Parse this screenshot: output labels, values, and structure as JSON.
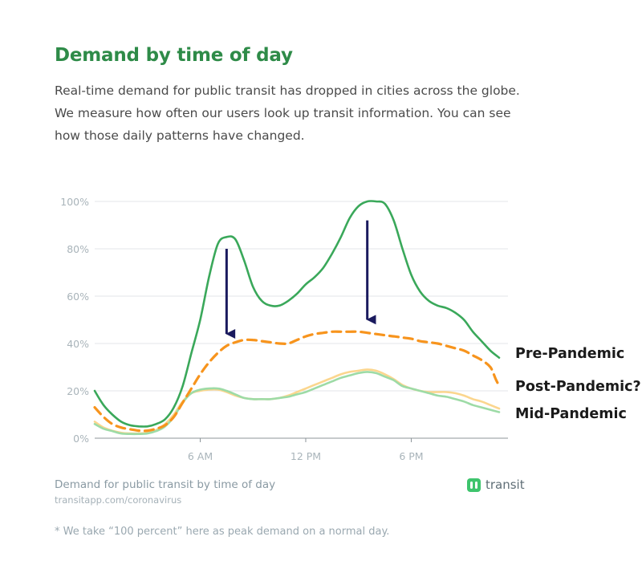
{
  "page": {
    "title": "Demand by time of day",
    "description_lines": [
      "Real-time demand for public transit has dropped in cities across the globe.",
      "We measure how often our users look up transit information. You can see",
      "how those daily patterns have changed."
    ],
    "caption": "Demand for public transit by time of day",
    "source": "transitapp.com/coronavirus",
    "brand": "transit",
    "brand_icon": "transit-logo-icon",
    "footnote": "* We take “100 percent” here as peak demand on a normal day."
  },
  "chart_data": {
    "type": "line",
    "x_unit": "hour of day",
    "xlim": [
      0,
      23.5
    ],
    "ylim": [
      0,
      100
    ],
    "y_ticks": [
      0,
      20,
      40,
      60,
      80,
      100
    ],
    "y_tick_labels": [
      "0%",
      "20%",
      "40%",
      "60%",
      "80%",
      "100%"
    ],
    "x_ticks": [
      6,
      12,
      18
    ],
    "x_tick_labels": [
      "6 AM",
      "12 PM",
      "6 PM"
    ],
    "grid": "horizontal",
    "legend": "direct labels at right end of lines",
    "series": [
      {
        "name": "Pre-Pandemic",
        "color": "#3aa85a",
        "style": "solid",
        "points": [
          [
            0,
            20
          ],
          [
            0.5,
            14
          ],
          [
            1,
            10
          ],
          [
            1.5,
            7
          ],
          [
            2,
            5.5
          ],
          [
            2.5,
            5
          ],
          [
            3,
            5
          ],
          [
            3.5,
            6
          ],
          [
            4,
            8
          ],
          [
            4.5,
            13
          ],
          [
            5,
            22
          ],
          [
            5.5,
            36
          ],
          [
            6,
            50
          ],
          [
            6.5,
            68
          ],
          [
            7,
            82
          ],
          [
            7.5,
            85
          ],
          [
            8,
            84
          ],
          [
            8.5,
            75
          ],
          [
            9,
            64
          ],
          [
            9.5,
            58
          ],
          [
            10,
            56
          ],
          [
            10.5,
            56
          ],
          [
            11,
            58
          ],
          [
            11.5,
            61
          ],
          [
            12,
            65
          ],
          [
            12.5,
            68
          ],
          [
            13,
            72
          ],
          [
            13.5,
            78
          ],
          [
            14,
            85
          ],
          [
            14.5,
            93
          ],
          [
            15,
            98
          ],
          [
            15.5,
            100
          ],
          [
            16,
            100
          ],
          [
            16.5,
            99
          ],
          [
            17,
            92
          ],
          [
            17.5,
            80
          ],
          [
            18,
            69
          ],
          [
            18.5,
            62
          ],
          [
            19,
            58
          ],
          [
            19.5,
            56
          ],
          [
            20,
            55
          ],
          [
            20.5,
            53
          ],
          [
            21,
            50
          ],
          [
            21.5,
            45
          ],
          [
            22,
            41
          ],
          [
            22.5,
            37
          ],
          [
            23,
            34
          ]
        ]
      },
      {
        "name": "Post-Pandemic?",
        "color": "#f7941d",
        "style": "dashed",
        "points": [
          [
            0,
            13
          ],
          [
            0.5,
            9
          ],
          [
            1,
            6
          ],
          [
            1.5,
            4.5
          ],
          [
            2,
            3.8
          ],
          [
            2.5,
            3.2
          ],
          [
            3,
            3.2
          ],
          [
            3.5,
            4
          ],
          [
            4,
            5.5
          ],
          [
            4.5,
            9
          ],
          [
            5,
            15
          ],
          [
            5.5,
            21
          ],
          [
            6,
            27
          ],
          [
            6.5,
            32
          ],
          [
            7,
            36
          ],
          [
            7.5,
            39
          ],
          [
            8,
            40.5
          ],
          [
            8.5,
            41.5
          ],
          [
            9,
            41.5
          ],
          [
            9.5,
            41
          ],
          [
            10,
            40.5
          ],
          [
            10.5,
            40
          ],
          [
            11,
            40
          ],
          [
            11.5,
            41.5
          ],
          [
            12,
            43
          ],
          [
            12.5,
            44
          ],
          [
            13,
            44.5
          ],
          [
            13.5,
            45
          ],
          [
            14,
            45
          ],
          [
            14.5,
            45
          ],
          [
            15,
            45
          ],
          [
            15.5,
            44.5
          ],
          [
            16,
            44
          ],
          [
            16.5,
            43.5
          ],
          [
            17,
            43
          ],
          [
            17.5,
            42.5
          ],
          [
            18,
            42
          ],
          [
            18.5,
            41
          ],
          [
            19,
            40.5
          ],
          [
            19.5,
            40
          ],
          [
            20,
            39
          ],
          [
            20.5,
            38
          ],
          [
            21,
            37
          ],
          [
            21.5,
            35
          ],
          [
            22,
            33
          ],
          [
            22.5,
            30
          ],
          [
            22.8,
            25
          ],
          [
            23,
            22
          ]
        ]
      },
      {
        "name": "Mid-Pandemic",
        "color": "#9ddba6",
        "style": "solid",
        "points": [
          [
            0,
            6
          ],
          [
            0.5,
            4
          ],
          [
            1,
            3
          ],
          [
            1.5,
            2
          ],
          [
            2,
            1.8
          ],
          [
            2.5,
            1.8
          ],
          [
            3,
            2
          ],
          [
            3.5,
            3
          ],
          [
            4,
            5
          ],
          [
            4.5,
            9
          ],
          [
            5,
            15
          ],
          [
            5.5,
            19
          ],
          [
            6,
            20.5
          ],
          [
            6.5,
            21
          ],
          [
            7,
            21
          ],
          [
            7.5,
            20
          ],
          [
            8,
            18.5
          ],
          [
            8.5,
            17
          ],
          [
            9,
            16.5
          ],
          [
            9.5,
            16.5
          ],
          [
            10,
            16.5
          ],
          [
            10.5,
            17
          ],
          [
            11,
            17.5
          ],
          [
            11.5,
            18.5
          ],
          [
            12,
            19.5
          ],
          [
            12.5,
            21
          ],
          [
            13,
            22.5
          ],
          [
            13.5,
            24
          ],
          [
            14,
            25.5
          ],
          [
            14.5,
            26.5
          ],
          [
            15,
            27.5
          ],
          [
            15.5,
            28
          ],
          [
            16,
            27.5
          ],
          [
            16.5,
            26
          ],
          [
            17,
            24.5
          ],
          [
            17.5,
            22
          ],
          [
            18,
            21
          ],
          [
            18.5,
            20
          ],
          [
            19,
            19
          ],
          [
            19.5,
            18
          ],
          [
            20,
            17.5
          ],
          [
            20.5,
            16.5
          ],
          [
            21,
            15.5
          ],
          [
            21.5,
            14
          ],
          [
            22,
            13
          ],
          [
            22.5,
            12
          ],
          [
            23,
            11
          ]
        ]
      },
      {
        "name": "Mid-Pandemic",
        "color": "#fbd68e",
        "style": "solid",
        "points": [
          [
            0,
            7
          ],
          [
            0.5,
            4.5
          ],
          [
            1,
            3.2
          ],
          [
            1.5,
            2.3
          ],
          [
            2,
            2
          ],
          [
            2.5,
            2
          ],
          [
            3,
            2.3
          ],
          [
            3.5,
            3.5
          ],
          [
            4,
            6
          ],
          [
            4.5,
            10
          ],
          [
            5,
            15.5
          ],
          [
            5.5,
            19
          ],
          [
            6,
            20
          ],
          [
            6.5,
            20.5
          ],
          [
            7,
            20.5
          ],
          [
            7.5,
            19.5
          ],
          [
            8,
            18
          ],
          [
            8.5,
            17
          ],
          [
            9,
            16.5
          ],
          [
            9.5,
            16.5
          ],
          [
            10,
            16.5
          ],
          [
            10.5,
            17
          ],
          [
            11,
            18
          ],
          [
            11.5,
            19.5
          ],
          [
            12,
            21
          ],
          [
            12.5,
            22.5
          ],
          [
            13,
            24
          ],
          [
            13.5,
            25.5
          ],
          [
            14,
            27
          ],
          [
            14.5,
            28
          ],
          [
            15,
            28.5
          ],
          [
            15.5,
            29
          ],
          [
            16,
            28.5
          ],
          [
            16.5,
            27
          ],
          [
            17,
            25
          ],
          [
            17.5,
            22.5
          ],
          [
            18,
            21
          ],
          [
            18.5,
            20
          ],
          [
            19,
            19.5
          ],
          [
            19.5,
            19.5
          ],
          [
            20,
            19.5
          ],
          [
            20.5,
            19
          ],
          [
            21,
            18
          ],
          [
            21.5,
            16.5
          ],
          [
            22,
            15.5
          ],
          [
            22.5,
            14
          ],
          [
            23,
            12.5
          ]
        ]
      }
    ],
    "series_labels": [
      "Pre-Pandemic",
      "Post-Pandemic?",
      "Mid-Pandemic"
    ],
    "label_color": "#1a1a1a",
    "annotations": [
      {
        "type": "arrow",
        "x": 7.5,
        "y_from": 80,
        "y_to": 40,
        "color": "#1a1a5e"
      },
      {
        "type": "arrow",
        "x": 15.5,
        "y_from": 92,
        "y_to": 46,
        "color": "#1a1a5e"
      }
    ]
  }
}
